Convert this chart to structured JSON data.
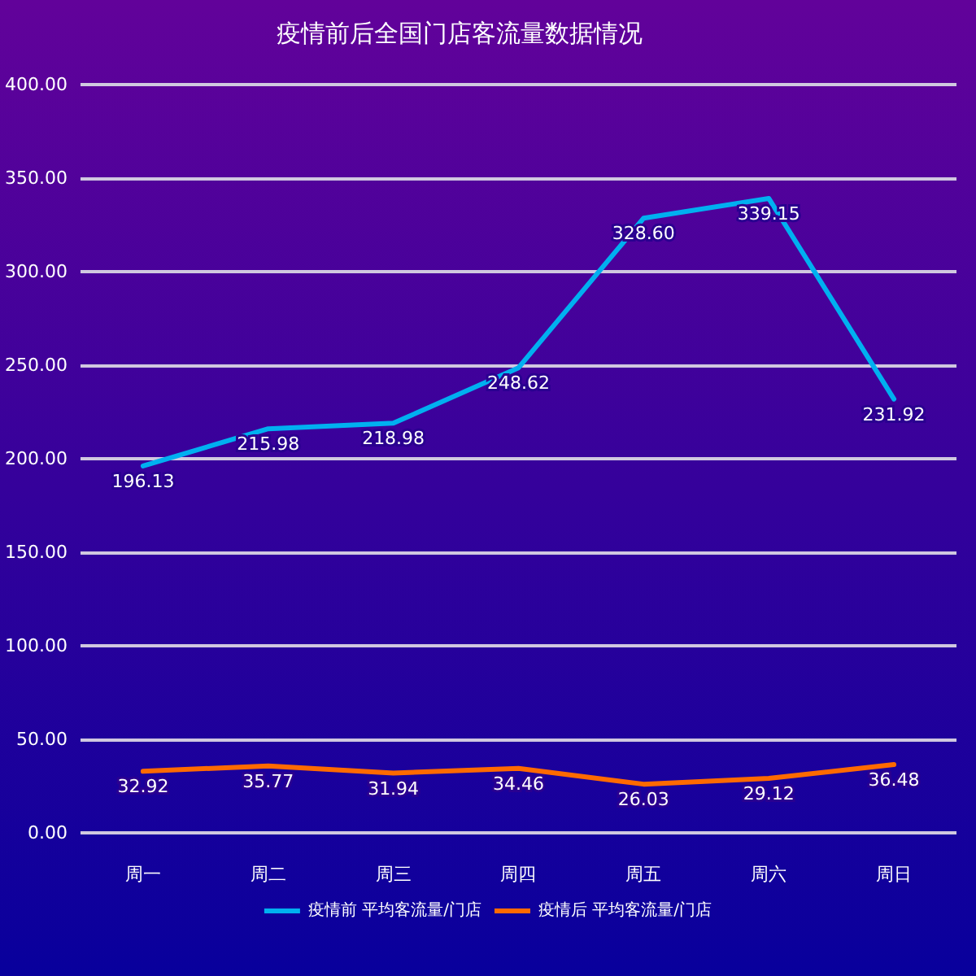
{
  "chart_data": {
    "type": "line",
    "title": "疫情前后全国门店客流量数据情况",
    "categories": [
      "周一",
      "周二",
      "周三",
      "周四",
      "周五",
      "周六",
      "周日"
    ],
    "series": [
      {
        "name": "疫情前 平均客流量/门店",
        "color": "#00b0f0",
        "values": [
          196.13,
          215.98,
          218.98,
          248.62,
          328.6,
          339.15,
          231.92
        ],
        "value_labels": [
          "196.13",
          "215.98",
          "218.98",
          "248.62",
          "328.60",
          "339.15",
          "231.92"
        ]
      },
      {
        "name": "疫情后 平均客流量/门店",
        "color": "#ff6a00",
        "values": [
          32.92,
          35.77,
          31.94,
          34.46,
          26.03,
          29.12,
          36.48
        ],
        "value_labels": [
          "32.92",
          "35.77",
          "31.94",
          "34.46",
          "26.03",
          "29.12",
          "36.48"
        ]
      }
    ],
    "ylim": [
      0,
      400
    ],
    "yticks": [
      {
        "value": 0,
        "label": "0.00"
      },
      {
        "value": 50,
        "label": "50.00"
      },
      {
        "value": 100,
        "label": "100.00"
      },
      {
        "value": 150,
        "label": "150.00"
      },
      {
        "value": 200,
        "label": "200.00"
      },
      {
        "value": 250,
        "label": "250.00"
      },
      {
        "value": 300,
        "label": "300.00"
      },
      {
        "value": 350,
        "label": "350.00"
      },
      {
        "value": 400,
        "label": "400.00"
      }
    ],
    "grid": "y",
    "legend": "bottom",
    "marker": "none",
    "line_style": "solid"
  }
}
